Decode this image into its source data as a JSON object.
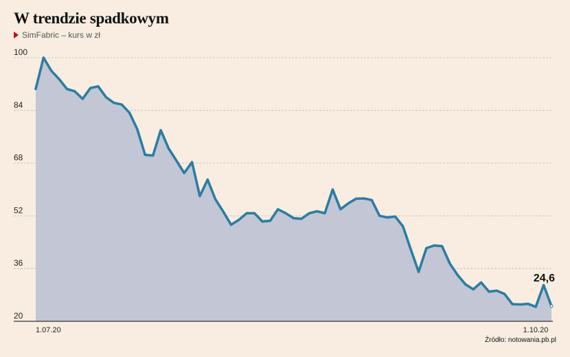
{
  "title": "W trendzie spadkowym",
  "subtitle": "SimFabric – kurs w zł",
  "source": "Źródło: notowania.pb.pl",
  "colors": {
    "line": "#2c7da3",
    "area": "#c3c6d4",
    "grid": "#bdbdbd",
    "marker": "#d0021b"
  },
  "chart_data": {
    "type": "area",
    "ylim": [
      20,
      100
    ],
    "yticks": [
      20,
      36,
      52,
      68,
      84,
      100
    ],
    "xtick_labels": [
      "1.07.20",
      "1.10.20"
    ],
    "grid": true,
    "values": [
      90.5,
      100,
      96,
      93.5,
      90.5,
      89.8,
      87.5,
      90.8,
      91.3,
      88,
      86.3,
      85.8,
      83.3,
      78.3,
      70.5,
      70.3,
      78,
      72.5,
      68.8,
      65,
      68.3,
      58,
      63,
      57,
      53.3,
      49.3,
      50.8,
      52.8,
      52.8,
      50.3,
      50.5,
      54,
      52.8,
      51.3,
      51.1,
      52.8,
      53.4,
      52.8,
      60,
      54,
      55.8,
      57.2,
      57.3,
      56.8,
      52,
      51.5,
      51.8,
      48.8,
      41.8,
      35,
      42.2,
      43,
      42.8,
      37.5,
      34,
      31.2,
      29.7,
      31.8,
      29,
      29.3,
      28.3,
      25.2,
      25.1,
      25.3,
      24.4,
      31,
      24.6
    ],
    "annotation": {
      "text": "24,6",
      "value": 24.6
    }
  }
}
